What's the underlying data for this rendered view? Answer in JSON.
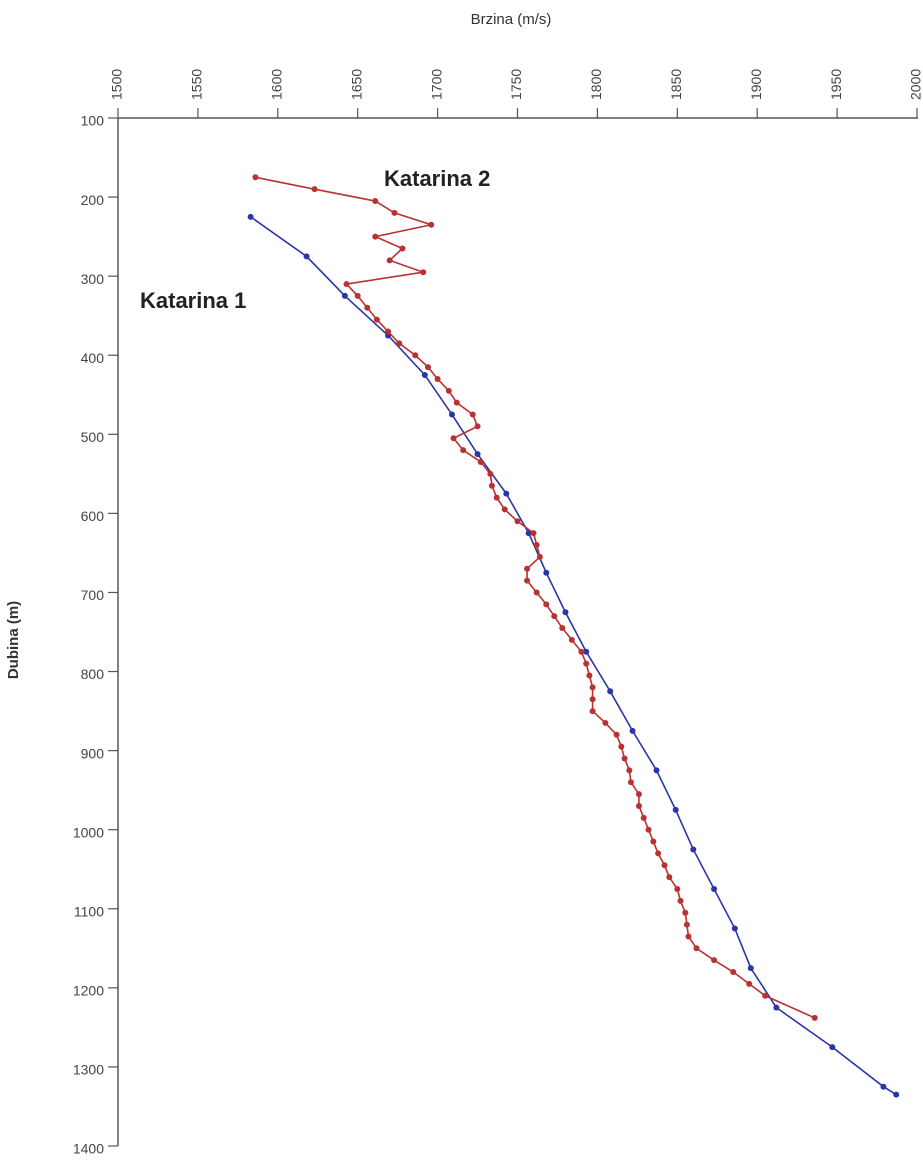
{
  "chart_data": {
    "type": "line",
    "x_label": "Brzina (m/s)",
    "y_label": "Dubina (m)",
    "xlim": [
      1500,
      2000
    ],
    "xticks": [
      1500,
      1550,
      1600,
      1650,
      1700,
      1750,
      1800,
      1850,
      1900,
      1950,
      2000
    ],
    "ylim": [
      100,
      1400
    ],
    "yticks": [
      100,
      200,
      300,
      400,
      500,
      600,
      700,
      800,
      900,
      1000,
      1100,
      1200,
      1300,
      1400
    ],
    "y_inverted": true,
    "x_axis_position": "top",
    "series": [
      {
        "name": "Katarina 1",
        "color": "#2b35a8",
        "x": [
          1583,
          1618,
          1642,
          1669,
          1692,
          1709,
          1725,
          1743,
          1757,
          1768,
          1780,
          1793,
          1808,
          1822,
          1837,
          1849,
          1860,
          1873,
          1886,
          1896,
          1912,
          1947,
          1979,
          1987
        ],
        "values": [
          225,
          275,
          325,
          375,
          425,
          475,
          525,
          575,
          625,
          675,
          725,
          775,
          825,
          875,
          925,
          975,
          1025,
          1075,
          1125,
          1175,
          1225,
          1275,
          1325,
          1335
        ]
      },
      {
        "name": "Katarina 2",
        "color": "#b83232",
        "x": [
          1586,
          1623,
          1661,
          1673,
          1696,
          1661,
          1678,
          1670,
          1691,
          1643,
          1650,
          1656,
          1662,
          1669,
          1676,
          1686,
          1694,
          1700,
          1707,
          1712,
          1722,
          1725,
          1710,
          1716,
          1727,
          1733,
          1734,
          1737,
          1742,
          1750,
          1760,
          1762,
          1764,
          1756,
          1756,
          1762,
          1768,
          1773,
          1778,
          1784,
          1790,
          1793,
          1795,
          1797,
          1797,
          1797,
          1805,
          1812,
          1815,
          1817,
          1820,
          1821,
          1826,
          1826,
          1829,
          1832,
          1835,
          1838,
          1842,
          1845,
          1850,
          1852,
          1855,
          1856,
          1857,
          1862,
          1873,
          1885,
          1895,
          1905,
          1936
        ],
        "values": [
          175,
          190,
          205,
          220,
          235,
          250,
          265,
          280,
          295,
          310,
          325,
          340,
          355,
          370,
          385,
          400,
          415,
          430,
          445,
          460,
          475,
          490,
          505,
          520,
          535,
          550,
          565,
          580,
          595,
          610,
          625,
          640,
          655,
          670,
          685,
          700,
          715,
          730,
          745,
          760,
          775,
          790,
          805,
          820,
          835,
          850,
          865,
          880,
          895,
          910,
          925,
          940,
          955,
          970,
          985,
          1000,
          1015,
          1030,
          1045,
          1060,
          1075,
          1090,
          1105,
          1120,
          1135,
          1150,
          1165,
          1180,
          1195,
          1210,
          1238
        ]
      }
    ]
  }
}
